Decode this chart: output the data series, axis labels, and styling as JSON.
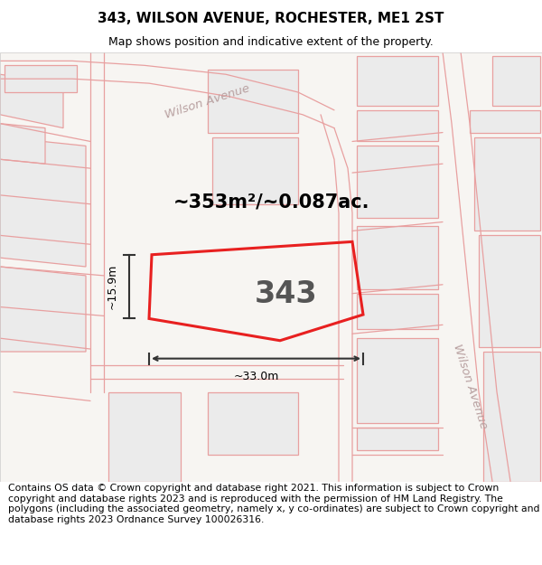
{
  "title": "343, WILSON AVENUE, ROCHESTER, ME1 2ST",
  "subtitle": "Map shows position and indicative extent of the property.",
  "footer": "Contains OS data © Crown copyright and database right 2021. This information is subject to Crown copyright and database rights 2023 and is reproduced with the permission of HM Land Registry. The polygons (including the associated geometry, namely x, y co-ordinates) are subject to Crown copyright and database rights 2023 Ordnance Survey 100026316.",
  "area_label": "~353m²/~0.087ac.",
  "width_label": "~33.0m",
  "height_label": "~15.9m",
  "number_label": "343",
  "map_bg": "#f7f5f2",
  "block_fc": "#ebebeb",
  "block_ec": "#e8a0a0",
  "road_ec": "#e8a0a0",
  "highlight_ec": "#e82020",
  "street_label_color": "#b8a0a0",
  "title_fontsize": 11,
  "subtitle_fontsize": 9,
  "footer_fontsize": 7.8,
  "area_fontsize": 15,
  "number_fontsize": 24
}
